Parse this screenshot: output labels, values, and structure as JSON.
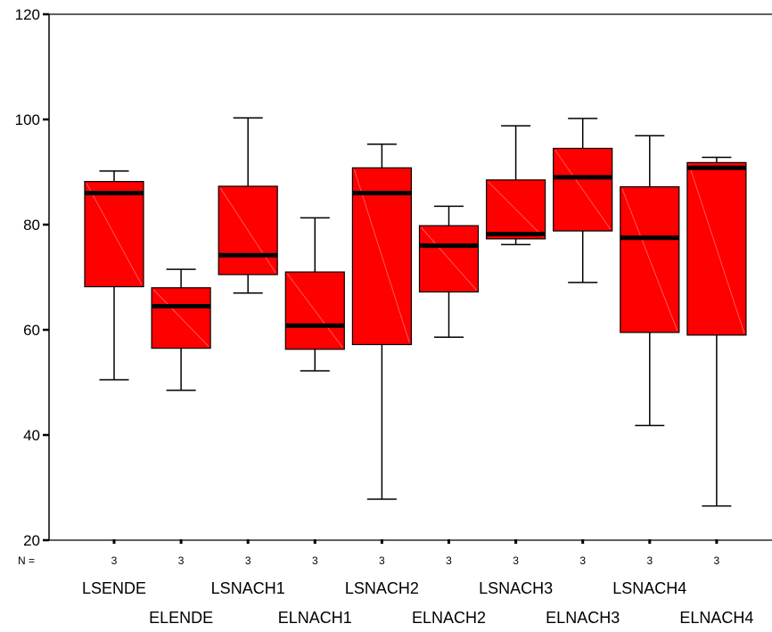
{
  "chart_data": {
    "type": "boxplot",
    "ylim": [
      20,
      120
    ],
    "yticks": [
      20,
      40,
      60,
      80,
      100,
      120
    ],
    "n_label": "N =",
    "box_color": "#ff0000",
    "median_color": "#000000",
    "categories": [
      "LSENDE",
      "ELENDE",
      "LSNACH1",
      "ELNACH1",
      "LSNACH2",
      "ELNACH2",
      "LSNACH3",
      "ELNACH3",
      "LSNACH4",
      "ELNACH4"
    ],
    "n": [
      "3",
      "3",
      "3",
      "3",
      "3",
      "3",
      "3",
      "3",
      "3",
      "3"
    ],
    "boxes": [
      {
        "name": "LSENDE",
        "min": 50.5,
        "q1": 68.2,
        "median": 86.0,
        "q3": 88.2,
        "max": 90.2
      },
      {
        "name": "ELENDE",
        "min": 48.5,
        "q1": 56.5,
        "median": 64.5,
        "q3": 68.0,
        "max": 71.5
      },
      {
        "name": "LSNACH1",
        "min": 67.0,
        "q1": 70.5,
        "median": 74.2,
        "q3": 87.3,
        "max": 100.3
      },
      {
        "name": "ELNACH1",
        "min": 52.2,
        "q1": 56.3,
        "median": 60.8,
        "q3": 71.0,
        "max": 81.3
      },
      {
        "name": "LSNACH2",
        "min": 27.8,
        "q1": 57.2,
        "median": 86.0,
        "q3": 90.8,
        "max": 95.3
      },
      {
        "name": "ELNACH2",
        "min": 58.6,
        "q1": 67.2,
        "median": 76.0,
        "q3": 79.8,
        "max": 83.5
      },
      {
        "name": "LSNACH3",
        "min": 76.2,
        "q1": 77.3,
        "median": 78.2,
        "q3": 88.5,
        "max": 98.8
      },
      {
        "name": "ELNACH3",
        "min": 69.0,
        "q1": 78.8,
        "median": 89.0,
        "q3": 94.5,
        "max": 100.2
      },
      {
        "name": "LSNACH4",
        "min": 41.8,
        "q1": 59.5,
        "median": 77.5,
        "q3": 87.2,
        "max": 96.9
      },
      {
        "name": "ELNACH4",
        "min": 26.5,
        "q1": 59.0,
        "median": 90.8,
        "q3": 91.8,
        "max": 92.8
      }
    ]
  }
}
